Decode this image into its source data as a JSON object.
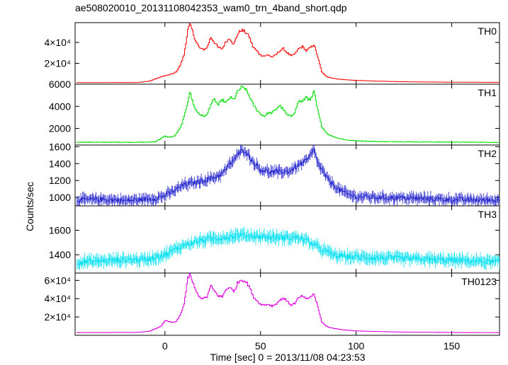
{
  "title": "ae508020010_20131108042353_wam0_trn_4band_short.qdp",
  "xlabel": "Time [sec] 0 = 2013/11/08 04:23:53",
  "ylabel": "Counts/sec",
  "chart_data": {
    "type": "line",
    "x_range": [
      -47,
      175
    ],
    "x_ticks": [
      0,
      50,
      100,
      150
    ],
    "x_tick_labels": [
      "0",
      "50",
      "100",
      "150"
    ],
    "panels": [
      {
        "label": "TH0",
        "color": "#ff0000",
        "style": "step",
        "noise": 0.03,
        "y_range": [
          0,
          59000
        ],
        "y_ticks": [
          20000,
          40000
        ],
        "y_tick_labels": [
          "2×10⁴",
          "4×10⁴"
        ],
        "profile": {
          "x": [
            -45,
            -15,
            -12,
            -8,
            -5,
            -2,
            0,
            2,
            4,
            6,
            8,
            10,
            11,
            12,
            13,
            14,
            16,
            18,
            20,
            22,
            24,
            26,
            28,
            30,
            32,
            34,
            36,
            38,
            40,
            42,
            44,
            46,
            48,
            50,
            52,
            54,
            56,
            58,
            60,
            62,
            64,
            66,
            68,
            70,
            72,
            74,
            76,
            78,
            80,
            82,
            84,
            86,
            90,
            95,
            100,
            110,
            120,
            130,
            150,
            175
          ],
          "y": [
            1500,
            1600,
            2000,
            3000,
            5000,
            7000,
            8000,
            9000,
            10000,
            12000,
            18000,
            28000,
            40000,
            52000,
            57000,
            53000,
            42000,
            35000,
            33000,
            35000,
            45000,
            40000,
            35000,
            34000,
            41000,
            44000,
            38000,
            48000,
            52000,
            50000,
            46000,
            36000,
            32000,
            28000,
            27000,
            28000,
            26000,
            28000,
            32000,
            34000,
            30000,
            27000,
            29000,
            34000,
            36000,
            32000,
            35000,
            38000,
            26000,
            12000,
            8000,
            6500,
            5000,
            4200,
            3600,
            3000,
            2500,
            2200,
            1900,
            1700
          ]
        }
      },
      {
        "label": "TH1",
        "color": "#00dd00",
        "style": "step",
        "noise": 0.03,
        "y_range": [
          500,
          6000
        ],
        "y_ticks": [
          2000,
          4000,
          6000
        ],
        "y_tick_labels": [
          "2000",
          "4000",
          "6000"
        ],
        "profile": {
          "x": [
            -45,
            -10,
            -5,
            0,
            2,
            5,
            8,
            10,
            12,
            13,
            14,
            16,
            18,
            20,
            22,
            24,
            26,
            28,
            30,
            32,
            34,
            36,
            38,
            40,
            42,
            44,
            46,
            48,
            50,
            52,
            54,
            56,
            58,
            60,
            62,
            64,
            66,
            68,
            70,
            72,
            74,
            76,
            78,
            80,
            82,
            84,
            86,
            90,
            95,
            100,
            110,
            120,
            130,
            150,
            175
          ],
          "y": [
            750,
            750,
            800,
            1300,
            1200,
            1300,
            2000,
            3000,
            4500,
            5300,
            4700,
            3700,
            3300,
            3100,
            3200,
            4200,
            4600,
            4100,
            4600,
            4300,
            4800,
            4600,
            5300,
            5700,
            5600,
            5000,
            4200,
            3700,
            3300,
            3100,
            3400,
            3400,
            3700,
            4100,
            3700,
            3200,
            3100,
            3500,
            4500,
            4400,
            4900,
            4500,
            5300,
            3600,
            2200,
            1700,
            1400,
            1150,
            950,
            880,
            820,
            800,
            780,
            760,
            740
          ]
        }
      },
      {
        "label": "TH2",
        "color": "#2222cc",
        "style": "errorbar",
        "noise": 0.03,
        "y_range": [
          900,
          1620
        ],
        "y_ticks": [
          1000,
          1200,
          1400,
          1600
        ],
        "y_tick_labels": [
          "1000",
          "1200",
          "1400",
          "1600"
        ],
        "profile": {
          "x": [
            -45,
            -30,
            -20,
            -10,
            -5,
            0,
            5,
            10,
            15,
            20,
            25,
            30,
            35,
            40,
            42,
            45,
            50,
            55,
            60,
            65,
            70,
            75,
            78,
            80,
            85,
            90,
            95,
            100,
            110,
            120,
            130,
            140,
            150,
            160,
            175
          ],
          "y": [
            970,
            975,
            960,
            980,
            990,
            1020,
            1080,
            1150,
            1170,
            1200,
            1230,
            1280,
            1420,
            1550,
            1560,
            1450,
            1330,
            1300,
            1300,
            1310,
            1380,
            1450,
            1570,
            1400,
            1220,
            1110,
            1040,
            1010,
            1000,
            995,
            990,
            980,
            975,
            970,
            965
          ]
        }
      },
      {
        "label": "TH3",
        "color": "#00e0f0",
        "style": "errorbar",
        "noise": 0.03,
        "y_range": [
          1250,
          1800
        ],
        "y_ticks": [
          1400,
          1600
        ],
        "y_tick_labels": [
          "1400",
          "1600"
        ],
        "profile": {
          "x": [
            -45,
            -20,
            -10,
            -5,
            0,
            5,
            10,
            15,
            20,
            30,
            40,
            50,
            60,
            70,
            75,
            80,
            85,
            90,
            100,
            120,
            140,
            160,
            175
          ],
          "y": [
            1340,
            1360,
            1360,
            1380,
            1400,
            1440,
            1480,
            1500,
            1520,
            1540,
            1560,
            1550,
            1540,
            1540,
            1510,
            1460,
            1420,
            1390,
            1380,
            1370,
            1360,
            1350,
            1340
          ]
        }
      },
      {
        "label": "TH0123",
        "color": "#dd00dd",
        "style": "step",
        "noise": 0.03,
        "y_range": [
          0,
          68000
        ],
        "y_ticks": [
          20000,
          40000,
          60000
        ],
        "y_tick_labels": [
          "2×10⁴",
          "4×10⁴",
          "6×10⁴"
        ],
        "profile": {
          "x": [
            -45,
            -15,
            -12,
            -8,
            -5,
            -2,
            0,
            2,
            4,
            6,
            8,
            10,
            11,
            12,
            13,
            14,
            16,
            18,
            20,
            22,
            24,
            26,
            28,
            30,
            32,
            34,
            36,
            38,
            40,
            42,
            44,
            46,
            48,
            50,
            52,
            54,
            56,
            58,
            60,
            62,
            64,
            66,
            68,
            70,
            72,
            74,
            76,
            78,
            80,
            82,
            84,
            86,
            90,
            95,
            100,
            110,
            120,
            130,
            150,
            175
          ],
          "y": [
            3000,
            3100,
            3500,
            4500,
            7000,
            10000,
            16000,
            15000,
            14000,
            15000,
            22000,
            34000,
            48000,
            62000,
            66000,
            61000,
            49000,
            42000,
            40000,
            42000,
            54000,
            48000,
            43000,
            42000,
            50000,
            53000,
            47000,
            57000,
            61000,
            59000,
            54000,
            43000,
            38000,
            34000,
            33000,
            34000,
            32000,
            34000,
            38000,
            41000,
            37000,
            33000,
            35000,
            41000,
            43000,
            39000,
            42000,
            45000,
            31000,
            15000,
            10500,
            8500,
            7000,
            5600,
            4800,
            4200,
            3700,
            3400,
            3100,
            2900
          ]
        }
      }
    ]
  }
}
